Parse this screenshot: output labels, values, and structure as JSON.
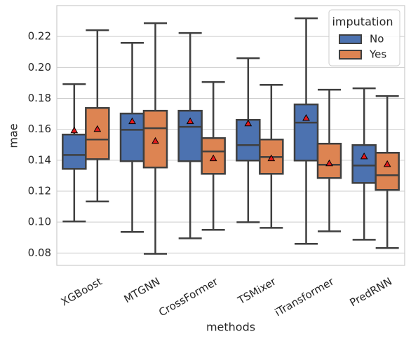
{
  "chart_data": {
    "type": "box",
    "xlabel": "methods",
    "ylabel": "mae",
    "categories": [
      "XGBoost",
      "MTGNN",
      "CrossFormer",
      "TSMixer",
      "iTransformer",
      "PredRNN"
    ],
    "legend_title": "imputation",
    "legend_position": "upper right",
    "grid": true,
    "ylim": [
      0.072,
      0.24
    ],
    "yticks": [
      0.08,
      {
        "value": 0.1,
        "label": "0.10"
      },
      0.12,
      0.14,
      0.16,
      0.18,
      {
        "value": 0.2,
        "label": "0.20"
      },
      0.22
    ],
    "mean_color": "#e41a1c",
    "series": [
      {
        "name": "No",
        "color": "#4c72b0",
        "whislo": [
          0.1004,
          0.0936,
          0.0895,
          0.0999,
          0.0859,
          0.0886
        ],
        "q1": [
          0.1344,
          0.1394,
          0.1394,
          0.1398,
          0.1398,
          0.1253
        ],
        "median": [
          0.1434,
          0.1597,
          0.1616,
          0.1498,
          0.1643,
          0.1366
        ],
        "q3": [
          0.1566,
          0.1702,
          0.172,
          0.1661,
          0.1761,
          0.1498
        ],
        "whishi": [
          0.1892,
          0.2159,
          0.2223,
          0.206,
          0.2318,
          0.1865
        ],
        "mean": [
          0.1593,
          0.1652,
          0.1652,
          0.1638,
          0.1673,
          0.1425
        ]
      },
      {
        "name": "Yes",
        "color": "#dd8452",
        "whislo": [
          0.1133,
          0.0795,
          0.095,
          0.0963,
          0.094,
          0.0832
        ],
        "q1": [
          0.1407,
          0.1353,
          0.1312,
          0.1312,
          0.1285,
          0.1208
        ],
        "median": [
          0.1534,
          0.1607,
          0.1457,
          0.1421,
          0.1371,
          0.1303
        ],
        "q3": [
          0.1738,
          0.172,
          0.1543,
          0.1534,
          0.1507,
          0.1448
        ],
        "whishi": [
          0.2241,
          0.2286,
          0.1906,
          0.1887,
          0.1856,
          0.1815
        ],
        "mean": [
          0.1602,
          0.1525,
          0.1412,
          0.1412,
          0.138,
          0.1375
        ]
      }
    ]
  }
}
